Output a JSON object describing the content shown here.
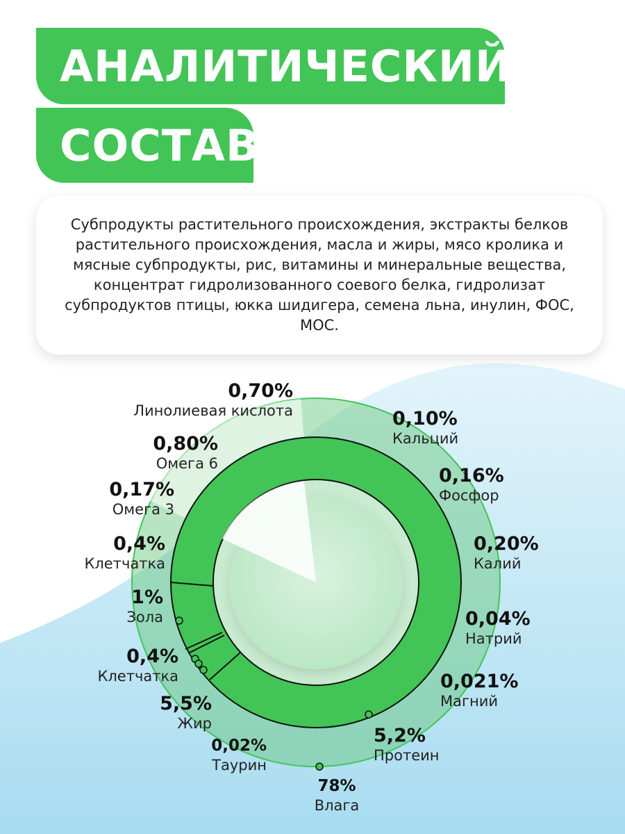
{
  "title": {
    "line1": "АНАЛИТИЧЕСКИЙ",
    "line2": "СОСТАВ"
  },
  "description": "Субпродукты растительного происхождения, экстракты белков растительного происхождения, масла и жиры, мясо кролика и мясные субпродукты, рис, витамины и минеральные вещества, концентрат гидролизованного соевого белка, гидролизат субпродуктов птицы, юкка шидигера, семена льна, инулин, ФОС, МОС.",
  "colors": {
    "accent_green": "#43c456",
    "light_green": "#a9dfb0",
    "wave_blue": "#b9e3f4"
  },
  "nutrients": [
    {
      "id": "linoleic",
      "value": "0,70%",
      "name": "Линолиевая кислота"
    },
    {
      "id": "omega6",
      "value": "0,80%",
      "name": "Омега 6"
    },
    {
      "id": "omega3",
      "value": "0,17%",
      "name": "Омега 3"
    },
    {
      "id": "fiber1",
      "value": "0,4%",
      "name": "Клетчатка"
    },
    {
      "id": "ash",
      "value": "1%",
      "name": "Зола"
    },
    {
      "id": "fiber2",
      "value": "0,4%",
      "name": "Клетчатка"
    },
    {
      "id": "fat",
      "value": "5,5%",
      "name": "Жир"
    },
    {
      "id": "taurine",
      "value": "0,02%",
      "name": "Таурин"
    },
    {
      "id": "moisture",
      "value": "78%",
      "name": "Влага"
    },
    {
      "id": "protein",
      "value": "5,2%",
      "name": "Протеин"
    },
    {
      "id": "magnesium",
      "value": "0,021%",
      "name": "Магний"
    },
    {
      "id": "sodium",
      "value": "0,04%",
      "name": "Натрий"
    },
    {
      "id": "potassium",
      "value": "0,20%",
      "name": "Калий"
    },
    {
      "id": "phosphorus",
      "value": "0,16%",
      "name": "Фосфор"
    },
    {
      "id": "calcium",
      "value": "0,10%",
      "name": "Кальций"
    }
  ]
}
